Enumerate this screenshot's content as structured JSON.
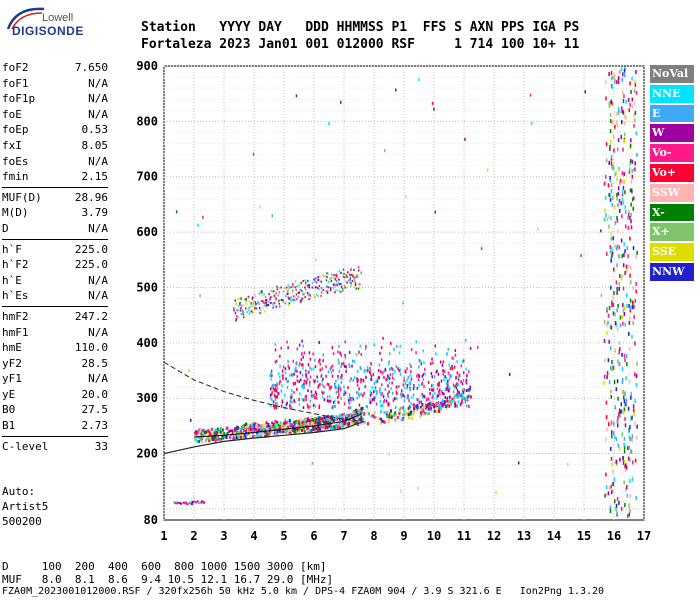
{
  "logo": {
    "brand": "Lowell",
    "product": "DIGISONDE"
  },
  "header": {
    "labels": "Station   YYYY DAY   DDD HHMMSS P1  FFS S AXN PPS IGA PS",
    "values": "Fortaleza 2023 Jan01 001 012000 RSF     1 714 100 10+ 11"
  },
  "parameters": [
    [
      {
        "name": "foF2",
        "value": "7.650"
      },
      {
        "name": "foF1",
        "value": "N/A"
      },
      {
        "name": "foF1p",
        "value": "N/A"
      },
      {
        "name": "foE",
        "value": "N/A"
      },
      {
        "name": "foEp",
        "value": "0.53"
      },
      {
        "name": "fxI",
        "value": "8.05"
      },
      {
        "name": "foEs",
        "value": "N/A"
      },
      {
        "name": "fmin",
        "value": "2.15"
      }
    ],
    [
      {
        "name": "MUF(D)",
        "value": "28.96"
      },
      {
        "name": "M(D)",
        "value": "3.79"
      },
      {
        "name": "D",
        "value": "N/A"
      }
    ],
    [
      {
        "name": "h`F",
        "value": "225.0"
      },
      {
        "name": "h`F2",
        "value": "225.0"
      },
      {
        "name": "h`E",
        "value": "N/A"
      },
      {
        "name": "h`Es",
        "value": "N/A"
      }
    ],
    [
      {
        "name": "hmF2",
        "value": "247.2"
      },
      {
        "name": "hmF1",
        "value": "N/A"
      },
      {
        "name": "hmE",
        "value": "110.0"
      },
      {
        "name": "yF2",
        "value": "28.5"
      },
      {
        "name": "yF1",
        "value": "N/A"
      },
      {
        "name": "yE",
        "value": "20.0"
      },
      {
        "name": "B0",
        "value": "27.5"
      },
      {
        "name": "B1",
        "value": "2.73"
      }
    ],
    [
      {
        "name": "C-level",
        "value": "33"
      }
    ]
  ],
  "autoscaler": {
    "line1": "Auto:",
    "line2": "Artist5",
    "line3": "500200"
  },
  "legend": [
    {
      "label": "NoVal",
      "color": "#7f7f7f"
    },
    {
      "label": "NNE",
      "color": "#00e5ff"
    },
    {
      "label": "E",
      "color": "#3fa9f5"
    },
    {
      "label": "W",
      "color": "#a0009f"
    },
    {
      "label": "Vo-",
      "color": "#ff1a8c"
    },
    {
      "label": "Vo+",
      "color": "#ff0033"
    },
    {
      "label": "SSW",
      "color": "#ffb3b3"
    },
    {
      "label": "X-",
      "color": "#008000"
    },
    {
      "label": "X+",
      "color": "#7fc46a"
    },
    {
      "label": "SSE",
      "color": "#dddd00"
    },
    {
      "label": "NNW",
      "color": "#2020d0"
    }
  ],
  "bottom": {
    "d_row": "D     100  200  400  600  800 1000 1500 3000 [km]",
    "muf_row": "MUF   8.0  8.1  8.6  9.4 10.5 12.1 16.7 29.0 [MHz]",
    "footer": "FZA0M_2023001012000.RSF / 320fx256h 50 kHz 5.0 km / DPS-4 FZA0M 904 / 3.9 S 321.6 E   Ion2Png 1.3.20"
  },
  "chart_data": {
    "type": "scatter",
    "xlim": [
      1,
      17
    ],
    "ylim": [
      80,
      900
    ],
    "x_ticks": [
      "1",
      "2",
      "3",
      "4",
      "5",
      "6",
      "7",
      "8",
      "9",
      "10",
      "11",
      "12",
      "13",
      "14",
      "15",
      "16",
      "17"
    ],
    "y_ticks": [
      "200",
      "300",
      "400",
      "500",
      "600",
      "700",
      "800",
      "900"
    ],
    "y_tick_values": [
      200,
      300,
      400,
      500,
      600,
      700,
      800,
      900
    ],
    "y_bottom_label": "80",
    "grid": true,
    "traces": {
      "o_f2_trace": {
        "freq": [
          2.0,
          3.0,
          4.0,
          5.0,
          6.0,
          7.0,
          7.6
        ],
        "height": [
          230,
          233,
          238,
          244,
          250,
          258,
          272
        ]
      },
      "x_f2_trace": {
        "freq": [
          3.5,
          5.0,
          6.5,
          8.0,
          9.5,
          10.5,
          11.2
        ],
        "height": [
          240,
          248,
          255,
          262,
          275,
          290,
          310
        ]
      },
      "f2_second_hop": {
        "freq": [
          3.3,
          4.5,
          5.5,
          6.5,
          7.6
        ],
        "height": [
          460,
          480,
          495,
          510,
          520
        ]
      },
      "es_trace": {
        "freq": [
          1.3,
          1.5,
          1.7,
          1.9,
          2.1
        ],
        "height": [
          110,
          110,
          110,
          112,
          112
        ]
      }
    },
    "profile_solid": {
      "freq": [
        1.0,
        2.0,
        3.0,
        4.0,
        5.0,
        6.0,
        7.0,
        7.65
      ],
      "height": [
        200,
        212,
        222,
        228,
        233,
        238,
        245,
        258
      ]
    },
    "profile_dashed": {
      "freq": [
        1.0,
        2.0,
        3.0,
        4.0,
        5.0,
        6.0,
        7.0,
        7.65
      ],
      "height": [
        365,
        333,
        312,
        296,
        283,
        272,
        262,
        258
      ]
    },
    "interference_freqs": [
      15.8,
      16.0,
      16.2,
      16.4,
      16.6
    ]
  }
}
